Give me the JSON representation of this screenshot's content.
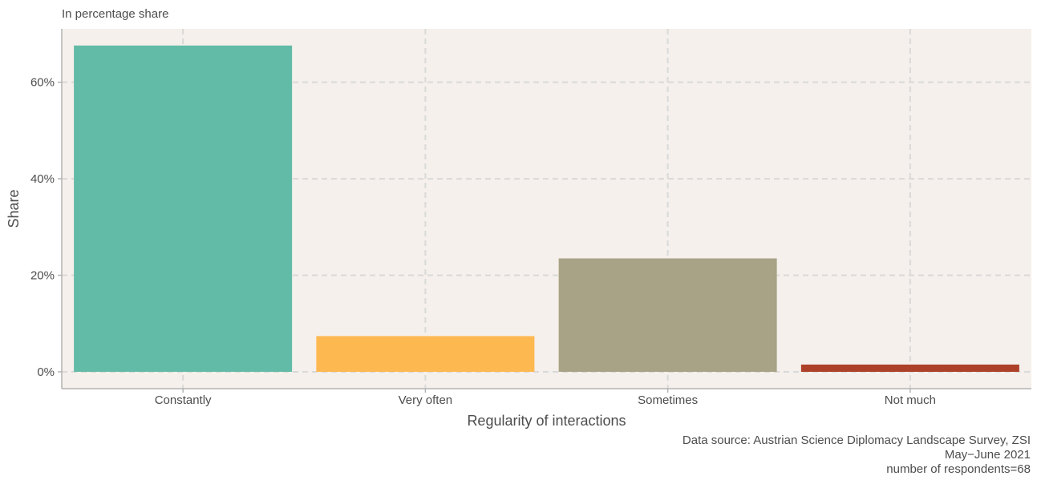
{
  "chart_data": {
    "type": "bar",
    "subtitle": "In percentage share",
    "xlabel": "Regularity of interactions",
    "ylabel": "Share",
    "categories": [
      "Constantly",
      "Very often",
      "Sometimes",
      "Not much"
    ],
    "values": [
      67.6,
      7.4,
      23.5,
      1.5
    ],
    "colors": [
      "#62bba6",
      "#feb850",
      "#a8a386",
      "#ad4028"
    ],
    "ylim": [
      0,
      70.6
    ],
    "yticks": [
      0,
      20,
      40,
      60
    ],
    "ytick_labels": [
      "0%",
      "20%",
      "40%",
      "60%"
    ],
    "grid": true,
    "panel_background": "#f5f0eb",
    "caption": [
      "Data source: Austrian Science Diplomacy Landscape Survey, ZSI",
      "May−June 2021",
      "number of respondents=68"
    ]
  }
}
